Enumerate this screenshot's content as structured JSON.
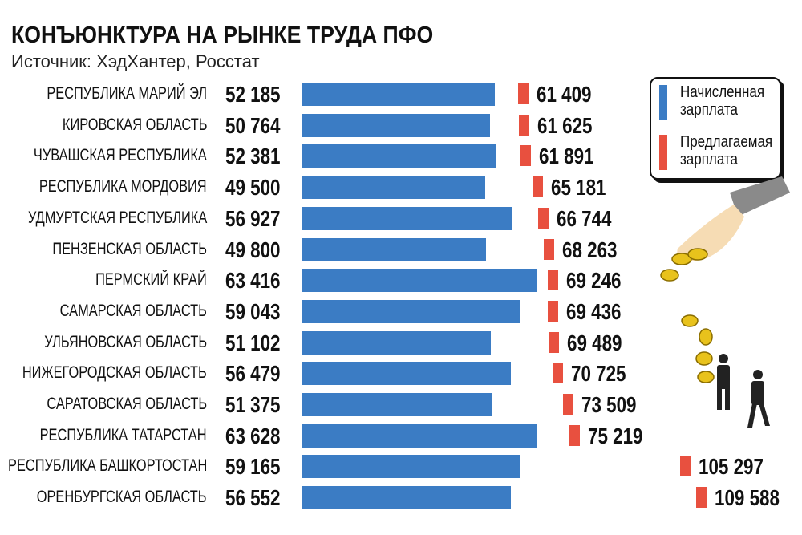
{
  "chart_data": {
    "type": "bar",
    "title": "КОНЪЮНКТУРА НА РЫНКЕ ТРУДА ПФО",
    "subtitle": "Источник: ХэдХантер, Росстат",
    "categories": [
      "РЕСПУБЛИКА МАРИЙ ЭЛ",
      "КИРОВСКАЯ ОБЛАСТЬ",
      "ЧУВАШСКАЯ РЕСПУБЛИКА",
      "РЕСПУБЛИКА МОРДОВИЯ",
      "УДМУРТСКАЯ РЕСПУБЛИКА",
      "ПЕНЗЕНСКАЯ ОБЛАСТЬ",
      "ПЕРМСКИЙ КРАЙ",
      "САМАРСКАЯ ОБЛАСТЬ",
      "УЛЬЯНОВСКАЯ ОБЛАСТЬ",
      "НИЖЕГОРОДСКАЯ ОБЛАСТЬ",
      "САРАТОВСКАЯ ОБЛАСТЬ",
      "РЕСПУБЛИКА ТАТАРСТАН",
      "РЕСПУБЛИКА БАШКОРТОСТАН",
      "ОРЕНБУРГСКАЯ ОБЛАСТЬ"
    ],
    "series": [
      {
        "name": "Начисленная зарплата",
        "color": "#3b7cc4",
        "values": [
          52185,
          50764,
          52381,
          49500,
          56927,
          49800,
          63416,
          59043,
          51102,
          56479,
          51375,
          63628,
          59165,
          56552
        ],
        "labels": [
          "52 185",
          "50 764",
          "52 381",
          "49 500",
          "56 927",
          "49 800",
          "63 416",
          "59 043",
          "51 102",
          "56 479",
          "51 375",
          "63 628",
          "59 165",
          "56 552"
        ]
      },
      {
        "name": "Предлагаемая зарплата",
        "color": "#e8503f",
        "values": [
          61409,
          61625,
          61891,
          65181,
          66744,
          68263,
          69246,
          69436,
          69489,
          70725,
          73509,
          75219,
          105297,
          109588
        ],
        "labels": [
          "61 409",
          "61 625",
          "61 891",
          "65 181",
          "66 744",
          "68 263",
          "69 246",
          "69 436",
          "69 489",
          "70 725",
          "73 509",
          "75 219",
          "105 297",
          "109 588"
        ]
      }
    ],
    "legend_lines": [
      [
        "Начисленная",
        "зарплата"
      ],
      [
        "Предлагаемая",
        "зарплата"
      ]
    ],
    "legend_position": "top-right"
  }
}
